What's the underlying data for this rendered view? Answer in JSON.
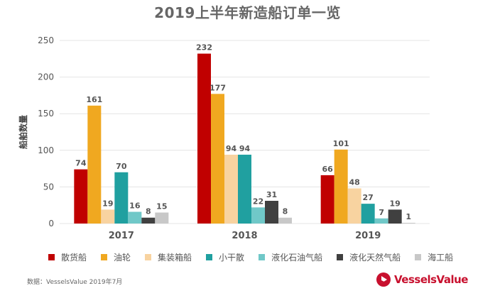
{
  "chart_data": {
    "type": "bar",
    "title": "2019上半年新造船订单一览",
    "xlabel": "",
    "ylabel": "船舶数量",
    "ylim": [
      0,
      250
    ],
    "yticks": [
      0,
      50,
      100,
      150,
      200,
      250
    ],
    "grid": true,
    "legend_position": "bottom",
    "categories": [
      "2017",
      "2018",
      "2019"
    ],
    "series": [
      {
        "name": "散货船",
        "color": "#c00000",
        "values": [
          74,
          232,
          66
        ]
      },
      {
        "name": "油轮",
        "color": "#f0a820",
        "values": [
          161,
          177,
          101
        ]
      },
      {
        "name": "集装箱船",
        "color": "#f8d3a0",
        "values": [
          19,
          94,
          48
        ]
      },
      {
        "name": "小干散",
        "color": "#20a0a0",
        "values": [
          70,
          94,
          27
        ]
      },
      {
        "name": "液化石油气船",
        "color": "#70c8c8",
        "values": [
          16,
          22,
          7
        ]
      },
      {
        "name": "液化天然气船",
        "color": "#404040",
        "values": [
          8,
          31,
          19
        ]
      },
      {
        "name": "海工船",
        "color": "#c8c8c8",
        "values": [
          15,
          8,
          1
        ]
      }
    ]
  },
  "footer": {
    "source": "数据：VesselsValue 2019年7月",
    "logo_text": "VesselsValue",
    "logo_color": "#c8102e"
  }
}
